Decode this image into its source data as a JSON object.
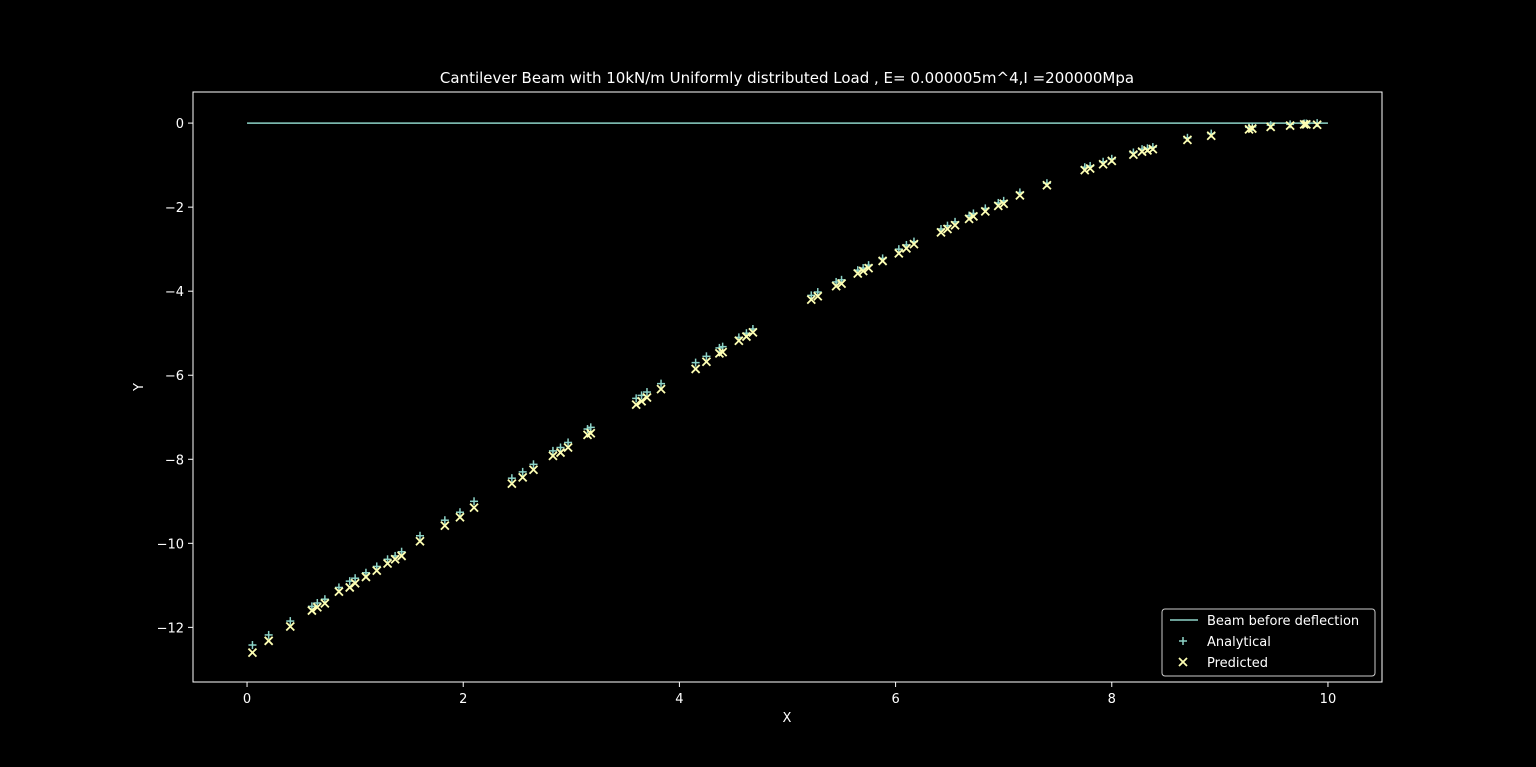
{
  "chart_data": {
    "type": "scatter",
    "title": "Cantilever Beam with 10kN/m Uniformly distributed Load , E= 0.000005m^4,I =200000Mpa",
    "xlabel": "X",
    "ylabel": "Y",
    "xlim": [
      -0.5,
      10.5
    ],
    "ylim": [
      -13.3,
      0.74
    ],
    "xticks": [
      0,
      2,
      4,
      6,
      8,
      10
    ],
    "yticks": [
      0,
      -2,
      -4,
      -6,
      -8,
      -10,
      -12
    ],
    "grid": false,
    "legend_position": "lower-right",
    "colors": {
      "background": "#000000",
      "beam": "#8dd3c7",
      "analytical": "#8dd3c7",
      "predicted": "#feffb3",
      "text": "#ffffff"
    },
    "beam": {
      "name": "Beam before deflection",
      "x": [
        0,
        10
      ],
      "y": [
        0,
        0
      ]
    },
    "x": [
      0.05,
      0.2,
      0.4,
      0.6,
      0.65,
      0.72,
      0.85,
      0.95,
      1.0,
      1.1,
      1.2,
      1.3,
      1.37,
      1.43,
      1.6,
      1.83,
      1.97,
      2.1,
      2.45,
      2.55,
      2.65,
      2.83,
      2.9,
      2.97,
      3.15,
      3.18,
      3.6,
      3.65,
      3.7,
      3.83,
      4.15,
      4.25,
      4.37,
      4.4,
      4.55,
      4.62,
      4.68,
      5.22,
      5.28,
      5.45,
      5.5,
      5.65,
      5.7,
      5.75,
      5.88,
      6.03,
      6.1,
      6.17,
      6.42,
      6.48,
      6.55,
      6.68,
      6.72,
      6.83,
      6.95,
      7.0,
      7.15,
      7.4,
      7.75,
      7.8,
      7.92,
      8.0,
      8.2,
      8.28,
      8.33,
      8.38,
      8.7,
      8.92,
      9.27,
      9.3,
      9.47,
      9.65,
      9.78,
      9.8,
      9.9
    ],
    "series": [
      {
        "name": "Analytical",
        "marker": "+",
        "values": [
          -12.42,
          -12.18,
          -11.85,
          -11.5,
          -11.42,
          -11.33,
          -11.05,
          -10.9,
          -10.83,
          -10.7,
          -10.55,
          -10.38,
          -10.3,
          -10.2,
          -9.82,
          -9.45,
          -9.26,
          -9.0,
          -8.45,
          -8.3,
          -8.12,
          -7.8,
          -7.72,
          -7.6,
          -7.28,
          -7.24,
          -6.55,
          -6.48,
          -6.4,
          -6.2,
          -5.7,
          -5.55,
          -5.35,
          -5.32,
          -5.1,
          -5.0,
          -4.9,
          -4.1,
          -4.02,
          -3.78,
          -3.73,
          -3.5,
          -3.45,
          -3.38,
          -3.22,
          -3.0,
          -2.9,
          -2.82,
          -2.52,
          -2.44,
          -2.35,
          -2.2,
          -2.15,
          -2.03,
          -1.9,
          -1.85,
          -1.65,
          -1.43,
          -1.05,
          -1.02,
          -0.92,
          -0.85,
          -0.7,
          -0.62,
          -0.6,
          -0.57,
          -0.35,
          -0.25,
          -0.1,
          -0.09,
          -0.05,
          -0.03,
          -0.01,
          -0.01,
          0.0
        ]
      },
      {
        "name": "Predicted",
        "marker": "x",
        "values": [
          -12.6,
          -12.32,
          -11.98,
          -11.6,
          -11.52,
          -11.43,
          -11.15,
          -11.05,
          -10.95,
          -10.8,
          -10.65,
          -10.48,
          -10.38,
          -10.3,
          -9.95,
          -9.58,
          -9.38,
          -9.15,
          -8.58,
          -8.43,
          -8.25,
          -7.92,
          -7.84,
          -7.72,
          -7.42,
          -7.38,
          -6.7,
          -6.62,
          -6.53,
          -6.33,
          -5.85,
          -5.68,
          -5.48,
          -5.45,
          -5.18,
          -5.08,
          -4.98,
          -4.2,
          -4.12,
          -3.88,
          -3.82,
          -3.58,
          -3.52,
          -3.45,
          -3.28,
          -3.1,
          -2.98,
          -2.88,
          -2.6,
          -2.52,
          -2.43,
          -2.28,
          -2.22,
          -2.1,
          -1.97,
          -1.92,
          -1.72,
          -1.48,
          -1.12,
          -1.08,
          -0.98,
          -0.9,
          -0.75,
          -0.68,
          -0.65,
          -0.62,
          -0.4,
          -0.3,
          -0.15,
          -0.13,
          -0.09,
          -0.06,
          -0.03,
          -0.03,
          -0.04
        ]
      }
    ]
  }
}
